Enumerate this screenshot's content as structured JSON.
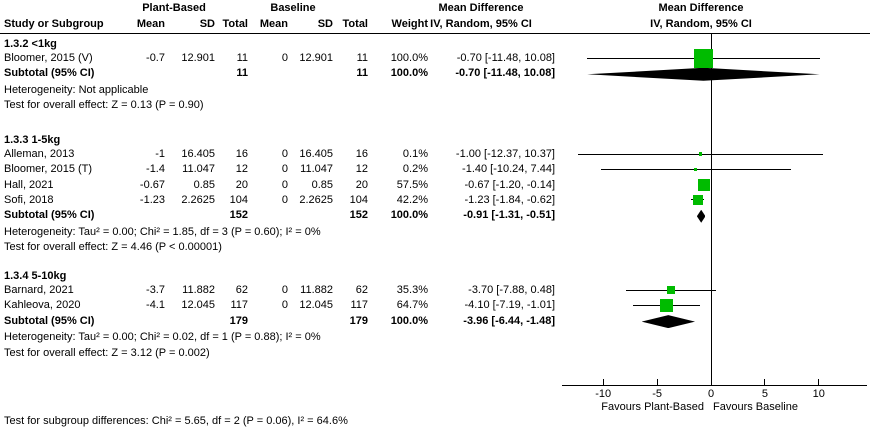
{
  "headers": {
    "plant_based": "Plant-Based",
    "baseline": "Baseline",
    "study": "Study or Subgroup",
    "mean1": "Mean",
    "sd1": "SD",
    "total1": "Total",
    "mean2": "Mean",
    "sd2": "SD",
    "total2": "Total",
    "weight": "Weight",
    "md1": "Mean Difference",
    "md1_sub": "IV, Random, 95% CI",
    "md2": "Mean Difference",
    "md2_sub": "IV, Random, 95% CI"
  },
  "axis": {
    "favours_left": "Favours Plant-Based",
    "favours_right": "Favours Baseline"
  },
  "footer": {
    "text": "Test for subgroup differences: Chi² = 5.65, df = 2 (P = 0.06), I² = 64.6%"
  },
  "colors": {
    "marker_green": "#00bb00",
    "diamond_black": "#000000",
    "line_black": "#000000"
  },
  "chart_data": {
    "type": "forest",
    "effect_measure": "Mean Difference, IV, Random, 95% CI",
    "x_axis": {
      "ticks": [
        -10,
        -5,
        0,
        5,
        10
      ],
      "range": [
        -13.8,
        14.5
      ]
    },
    "groups": [
      {
        "label": "1.3.2 <1kg",
        "studies": [
          {
            "name": "Bloomer, 2015 (V)",
            "mean": "-0.7",
            "sd": "12.901",
            "total": "11",
            "mean2": "0",
            "sd2": "12.901",
            "total2": "11",
            "weight": "100.0%",
            "weight_pct": 100.0,
            "effect": -0.7,
            "ci_lo": -11.48,
            "ci_hi": 10.08,
            "ci_text": "-0.70 [-11.48, 10.08]"
          }
        ],
        "subtotal": {
          "label": "Subtotal (95% CI)",
          "total": "11",
          "total2": "11",
          "weight": "100.0%",
          "effect": -0.7,
          "ci_lo": -11.48,
          "ci_hi": 10.08,
          "ci_text": "-0.70 [-11.48, 10.08]"
        },
        "heterogeneity": "Heterogeneity: Not applicable",
        "overall_effect": "Test for overall effect: Z = 0.13 (P = 0.90)"
      },
      {
        "label": "1.3.3 1-5kg",
        "studies": [
          {
            "name": "Alleman, 2013",
            "mean": "-1",
            "sd": "16.405",
            "total": "16",
            "mean2": "0",
            "sd2": "16.405",
            "total2": "16",
            "weight": "0.1%",
            "weight_pct": 0.1,
            "effect": -1.0,
            "ci_lo": -12.37,
            "ci_hi": 10.37,
            "ci_text": "-1.00 [-12.37, 10.37]"
          },
          {
            "name": "Bloomer, 2015 (T)",
            "mean": "-1.4",
            "sd": "11.047",
            "total": "12",
            "mean2": "0",
            "sd2": "11.047",
            "total2": "12",
            "weight": "0.2%",
            "weight_pct": 0.2,
            "effect": -1.4,
            "ci_lo": -10.24,
            "ci_hi": 7.44,
            "ci_text": "-1.40 [-10.24, 7.44]"
          },
          {
            "name": "Hall, 2021",
            "mean": "-0.67",
            "sd": "0.85",
            "total": "20",
            "mean2": "0",
            "sd2": "0.85",
            "total2": "20",
            "weight": "57.5%",
            "weight_pct": 57.5,
            "effect": -0.67,
            "ci_lo": -1.2,
            "ci_hi": -0.14,
            "ci_text": "-0.67 [-1.20, -0.14]"
          },
          {
            "name": "Sofi, 2018",
            "mean": "-1.23",
            "sd": "2.2625",
            "total": "104",
            "mean2": "0",
            "sd2": "2.2625",
            "total2": "104",
            "weight": "42.2%",
            "weight_pct": 42.2,
            "effect": -1.23,
            "ci_lo": -1.84,
            "ci_hi": -0.62,
            "ci_text": "-1.23 [-1.84, -0.62]"
          }
        ],
        "subtotal": {
          "label": "Subtotal (95% CI)",
          "total": "152",
          "total2": "152",
          "weight": "100.0%",
          "effect": -0.91,
          "ci_lo": -1.31,
          "ci_hi": -0.51,
          "ci_text": "-0.91 [-1.31, -0.51]"
        },
        "heterogeneity": "Heterogeneity: Tau² = 0.00; Chi² = 1.85, df = 3 (P = 0.60); I² = 0%",
        "overall_effect": "Test for overall effect: Z = 4.46 (P < 0.00001)"
      },
      {
        "label": "1.3.4 5-10kg",
        "studies": [
          {
            "name": "Barnard, 2021",
            "mean": "-3.7",
            "sd": "11.882",
            "total": "62",
            "mean2": "0",
            "sd2": "11.882",
            "total2": "62",
            "weight": "35.3%",
            "weight_pct": 35.3,
            "effect": -3.7,
            "ci_lo": -7.88,
            "ci_hi": 0.48,
            "ci_text": "-3.70 [-7.88, 0.48]"
          },
          {
            "name": "Kahleova, 2020",
            "mean": "-4.1",
            "sd": "12.045",
            "total": "117",
            "mean2": "0",
            "sd2": "12.045",
            "total2": "117",
            "weight": "64.7%",
            "weight_pct": 64.7,
            "effect": -4.1,
            "ci_lo": -7.19,
            "ci_hi": -1.01,
            "ci_text": "-4.10 [-7.19, -1.01]"
          }
        ],
        "subtotal": {
          "label": "Subtotal (95% CI)",
          "total": "179",
          "total2": "179",
          "weight": "100.0%",
          "effect": -3.96,
          "ci_lo": -6.44,
          "ci_hi": -1.48,
          "ci_text": "-3.96 [-6.44, -1.48]"
        },
        "heterogeneity": "Heterogeneity: Tau² = 0.00; Chi² = 0.02, df = 1 (P = 0.88); I² = 0%",
        "overall_effect": "Test for overall effect: Z = 3.12 (P = 0.002)"
      }
    ]
  }
}
